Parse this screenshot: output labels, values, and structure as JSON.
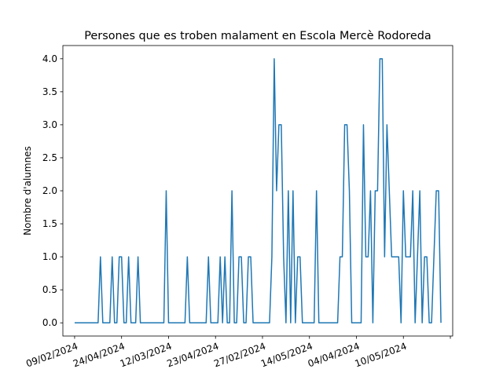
{
  "chart_data": {
    "type": "line",
    "title": "Persones que es troben malament en Escola Mercè Rodoreda",
    "xlabel": "",
    "ylabel": "Nombre d'alumnes",
    "x_tick_labels": [
      "09/02/2024",
      "24/04/2024",
      "12/03/2024",
      "23/04/2024",
      "27/02/2024",
      "14/05/2024",
      "04/04/2024",
      "10/05/2024",
      ""
    ],
    "xlim": [
      -5,
      161
    ],
    "ylim": [
      -0.2,
      4.2
    ],
    "y_ticks": [
      0.0,
      0.5,
      1.0,
      1.5,
      2.0,
      2.5,
      3.0,
      3.5,
      4.0
    ],
    "grid": false,
    "series": [
      {
        "color": "#1f77b4",
        "values": [
          0,
          0,
          0,
          0,
          0,
          0,
          0,
          0,
          0,
          0,
          0,
          1,
          0,
          0,
          0,
          0,
          1,
          0,
          0,
          1,
          1,
          0,
          0,
          1,
          0,
          0,
          0,
          1,
          0,
          0,
          0,
          0,
          0,
          0,
          0,
          0,
          0,
          0,
          0,
          2,
          0,
          0,
          0,
          0,
          0,
          0,
          0,
          0,
          1,
          0,
          0,
          0,
          0,
          0,
          0,
          0,
          0,
          1,
          0,
          0,
          0,
          0,
          1,
          0,
          1,
          0,
          0,
          2,
          0,
          0,
          1,
          1,
          0,
          0,
          1,
          1,
          0,
          0,
          0,
          0,
          0,
          0,
          0,
          0,
          1,
          4,
          2,
          3,
          3,
          1,
          0,
          2,
          0,
          2,
          0,
          1,
          1,
          0,
          0,
          0,
          0,
          0,
          0,
          2,
          0,
          0,
          0,
          0,
          0,
          0,
          0,
          0,
          0,
          1,
          1,
          3,
          3,
          2,
          0,
          0,
          0,
          0,
          0,
          3,
          1,
          1,
          2,
          0,
          2,
          2,
          4,
          4,
          1,
          3,
          2,
          1,
          1,
          1,
          1,
          0,
          2,
          1,
          1,
          1,
          2,
          0,
          1,
          2,
          0,
          1,
          1,
          0,
          0,
          1,
          2,
          2,
          0
        ]
      }
    ]
  }
}
